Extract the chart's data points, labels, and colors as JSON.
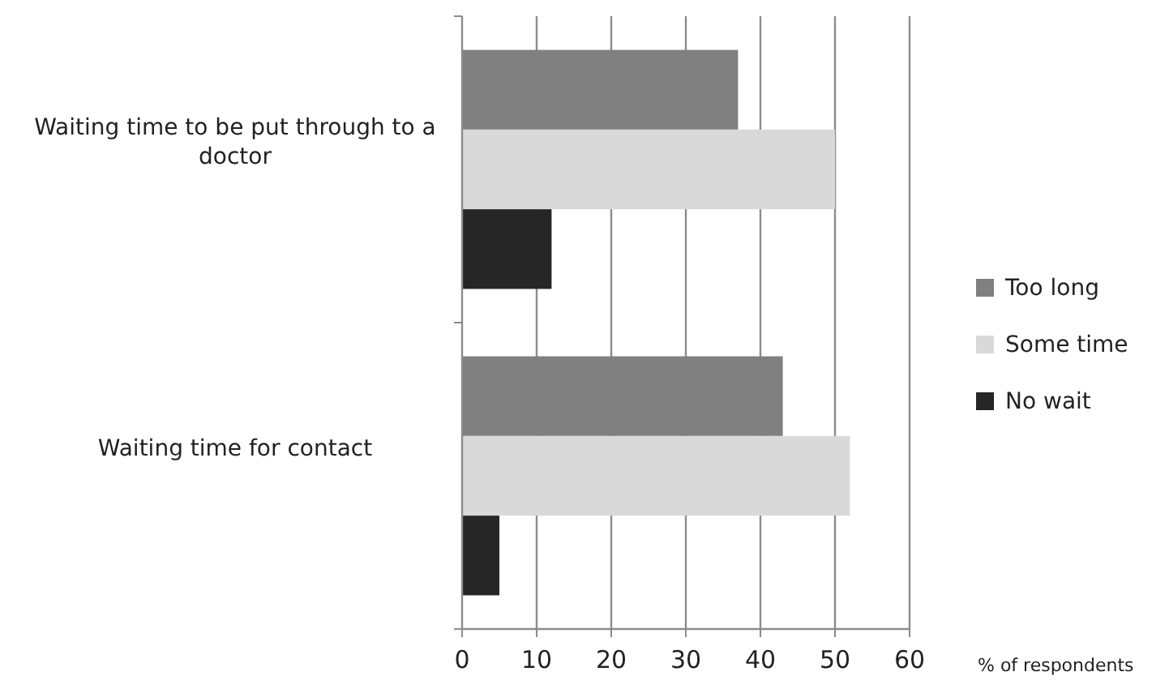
{
  "chart_data": {
    "type": "bar",
    "orientation": "horizontal",
    "categories": [
      "Waiting time to be put through to a doctor",
      "Waiting time for contact"
    ],
    "series": [
      {
        "name": "Too long",
        "color": "#808080",
        "values": [
          37,
          43
        ]
      },
      {
        "name": "Some time",
        "color": "#d9d9d9",
        "values": [
          50,
          52
        ]
      },
      {
        "name": "No wait",
        "color": "#262626",
        "values": [
          12,
          5
        ]
      }
    ],
    "xlabel": "% of respondents",
    "xlim": [
      0,
      60
    ],
    "xticks": [
      0,
      10,
      20,
      30,
      40,
      50,
      60
    ],
    "grid": "x",
    "legend": "right"
  }
}
